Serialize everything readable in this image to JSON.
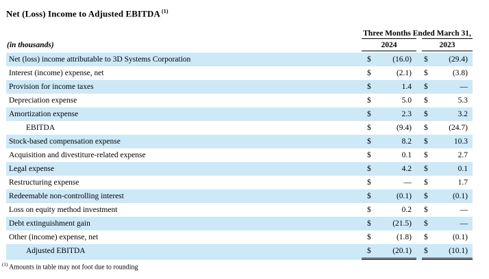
{
  "title": {
    "text": "Net (Loss) Income to Adjusted EBITDA",
    "footnote_ref": "(1)"
  },
  "table": {
    "units_label": "(in thousands)",
    "period_header": "Three Months Ended March 31,",
    "columns": [
      "2024",
      "2023"
    ],
    "currency_symbol": "$",
    "shaded_row_color": "#cde9f8",
    "rows": [
      {
        "label": "Net (loss) income attributable to 3D Systems Corporation",
        "v2024": "(16.0)",
        "v2023": "(29.4)",
        "shaded": true,
        "indent": false,
        "underline": "none"
      },
      {
        "label": "Interest (income) expense, net",
        "v2024": "(2.1)",
        "v2023": "(3.8)",
        "shaded": false,
        "indent": false,
        "underline": "none"
      },
      {
        "label": "Provision for income taxes",
        "v2024": "1.4",
        "v2023": "—",
        "shaded": true,
        "indent": false,
        "underline": "none"
      },
      {
        "label": "Depreciation expense",
        "v2024": "5.0",
        "v2023": "5.3",
        "shaded": false,
        "indent": false,
        "underline": "none"
      },
      {
        "label": "Amortization expense",
        "v2024": "2.3",
        "v2023": "3.2",
        "shaded": true,
        "indent": false,
        "underline": "single"
      },
      {
        "label": "EBITDA",
        "v2024": "(9.4)",
        "v2023": "(24.7)",
        "shaded": false,
        "indent": true,
        "underline": "none"
      },
      {
        "label": "Stock-based compensation expense",
        "v2024": "8.2",
        "v2023": "10.3",
        "shaded": true,
        "indent": false,
        "underline": "none"
      },
      {
        "label": "Acquisition and divestiture-related expense",
        "v2024": "0.1",
        "v2023": "2.7",
        "shaded": false,
        "indent": false,
        "underline": "none"
      },
      {
        "label": "Legal expense",
        "v2024": "4.2",
        "v2023": "0.1",
        "shaded": true,
        "indent": false,
        "underline": "none"
      },
      {
        "label": "Restructuring expense",
        "v2024": "—",
        "v2023": "1.7",
        "shaded": false,
        "indent": false,
        "underline": "none"
      },
      {
        "label": "Redeemable non-controlling interest",
        "v2024": "(0.1)",
        "v2023": "(0.1)",
        "shaded": true,
        "indent": false,
        "underline": "none"
      },
      {
        "label": "Loss on equity method investment",
        "v2024": "0.2",
        "v2023": "—",
        "shaded": false,
        "indent": false,
        "underline": "none"
      },
      {
        "label": "Debt extinguishment gain",
        "v2024": "(21.5)",
        "v2023": "—",
        "shaded": true,
        "indent": false,
        "underline": "none"
      },
      {
        "label": "Other (income) expense, net",
        "v2024": "(1.8)",
        "v2023": "(0.1)",
        "shaded": false,
        "indent": false,
        "underline": "single"
      },
      {
        "label": "Adjusted EBITDA",
        "v2024": "(20.1)",
        "v2023": "(10.1)",
        "shaded": true,
        "indent": true,
        "underline": "double"
      }
    ]
  },
  "footnote": {
    "ref": "(1)",
    "text": "Amounts in table may not foot due to rounding"
  }
}
